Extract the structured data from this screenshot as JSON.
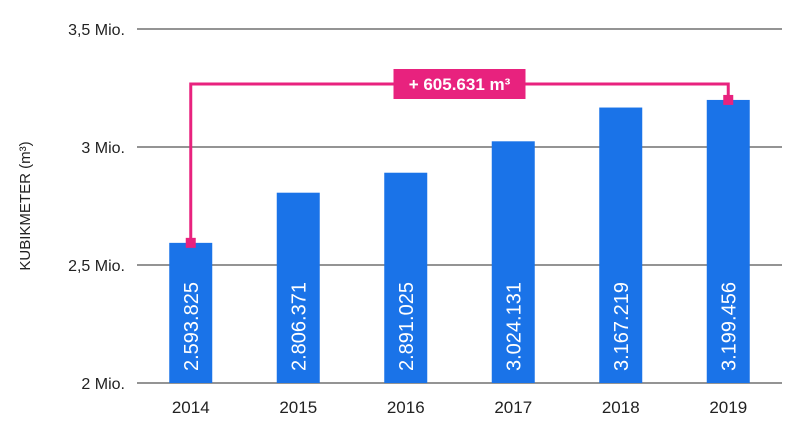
{
  "chart_data": {
    "type": "bar",
    "ylabel": "KUBIKMETER (m³)",
    "categories": [
      "2014",
      "2015",
      "2016",
      "2017",
      "2018",
      "2019"
    ],
    "values": [
      2593825,
      2806371,
      2891025,
      3024131,
      3167219,
      3199456
    ],
    "value_labels": [
      "2.593.825",
      "2.806.371",
      "2.891.025",
      "3.024.131",
      "3.167.219",
      "3.199.456"
    ],
    "y_ticks": [
      {
        "value": 2000000,
        "label": "2 Mio."
      },
      {
        "value": 2500000,
        "label": "2,5 Mio."
      },
      {
        "value": 3000000,
        "label": "3 Mio."
      },
      {
        "value": 3500000,
        "label": "3,5 Mio."
      }
    ],
    "ylim": [
      2000000,
      3500000
    ],
    "grid": true,
    "annotation": {
      "label": "+ 605.631 m³",
      "from_category": "2014",
      "to_category": "2019",
      "color": "#e8227e"
    },
    "colors": {
      "bar": "#1a73e8",
      "bar_label": "#ffffff",
      "grid": "#555555",
      "text": "#222222"
    }
  }
}
